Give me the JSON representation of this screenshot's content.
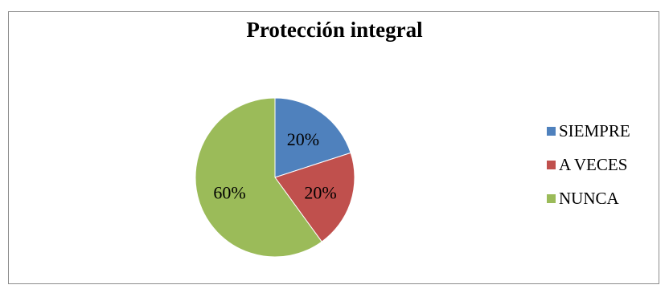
{
  "chart_data": {
    "type": "pie",
    "title": "Protección integral",
    "categories": [
      "SIEMPRE",
      "A VECES",
      "NUNCA"
    ],
    "values": [
      20,
      20,
      60
    ],
    "data_labels": [
      "20%",
      "20%",
      "60%"
    ],
    "colors": [
      "#4f81bd",
      "#c0504d",
      "#9bbb59"
    ],
    "legend_position": "right"
  }
}
